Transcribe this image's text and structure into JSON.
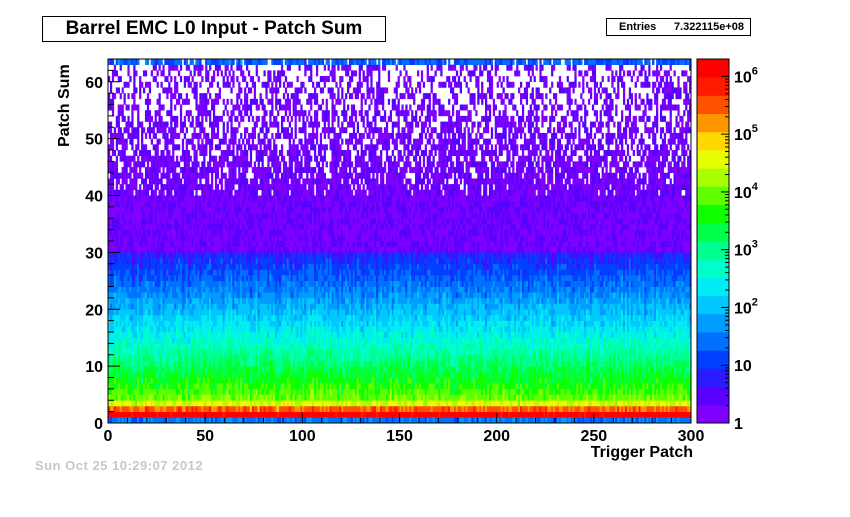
{
  "title": "Barrel EMC L0 Input - Patch Sum",
  "stats": {
    "label": "Entries",
    "value": "7.322115e+08"
  },
  "footer": "Sun Oct 25 10:29:07 2012",
  "chart_data": {
    "type": "heatmap",
    "xlabel": "Trigger Patch",
    "ylabel": "Patch Sum",
    "xlim": [
      0,
      300
    ],
    "ylim": [
      0,
      64
    ],
    "x_ticks": [
      0,
      50,
      100,
      150,
      200,
      250,
      300
    ],
    "y_ticks": [
      0,
      10,
      20,
      30,
      40,
      50,
      60
    ],
    "z_scale": "log",
    "zlim": [
      1,
      2000000
    ],
    "z_ticks": [
      {
        "value": 1,
        "label": "1"
      },
      {
        "value": 10,
        "label": "10"
      },
      {
        "value": 100,
        "label": "10",
        "exp": "2"
      },
      {
        "value": 1000,
        "label": "10",
        "exp": "3"
      },
      {
        "value": 10000,
        "label": "10",
        "exp": "4"
      },
      {
        "value": 100000,
        "label": "10",
        "exp": "5"
      },
      {
        "value": 1000000,
        "label": "10",
        "exp": "6"
      }
    ],
    "bins_x": 300,
    "bins_y": 64,
    "row_profile": [
      {
        "patch_sum": 0,
        "typical_count": 30
      },
      {
        "patch_sum": 1,
        "typical_count": 2000000
      },
      {
        "patch_sum": 2,
        "typical_count": 300000
      },
      {
        "patch_sum": 3,
        "typical_count": 30000
      },
      {
        "patch_sum": 4,
        "typical_count": 10000
      },
      {
        "patch_sum": 6,
        "typical_count": 5000
      },
      {
        "patch_sum": 10,
        "typical_count": 1500
      },
      {
        "patch_sum": 15,
        "typical_count": 300
      },
      {
        "patch_sum": 20,
        "typical_count": 80
      },
      {
        "patch_sum": 25,
        "typical_count": 20
      },
      {
        "patch_sum": 30,
        "typical_count": 6
      },
      {
        "patch_sum": 35,
        "typical_count": 3
      },
      {
        "patch_sum": 40,
        "typical_count": 1.5
      },
      {
        "patch_sum": 50,
        "typical_count": 1
      },
      {
        "patch_sum": 62,
        "typical_count": 0.6
      },
      {
        "patch_sum": 63,
        "typical_count": 20
      }
    ],
    "palette": [
      "#7f00ff",
      "#5a00ff",
      "#2d1bff",
      "#0040ff",
      "#0070ff",
      "#009dff",
      "#00c8ff",
      "#00ecf2",
      "#00ffc8",
      "#00ff90",
      "#00ff48",
      "#10ff00",
      "#60ff00",
      "#a8ff00",
      "#e6ff00",
      "#ffd800",
      "#ff9600",
      "#ff5000",
      "#ff1a00",
      "#ff0000"
    ]
  }
}
